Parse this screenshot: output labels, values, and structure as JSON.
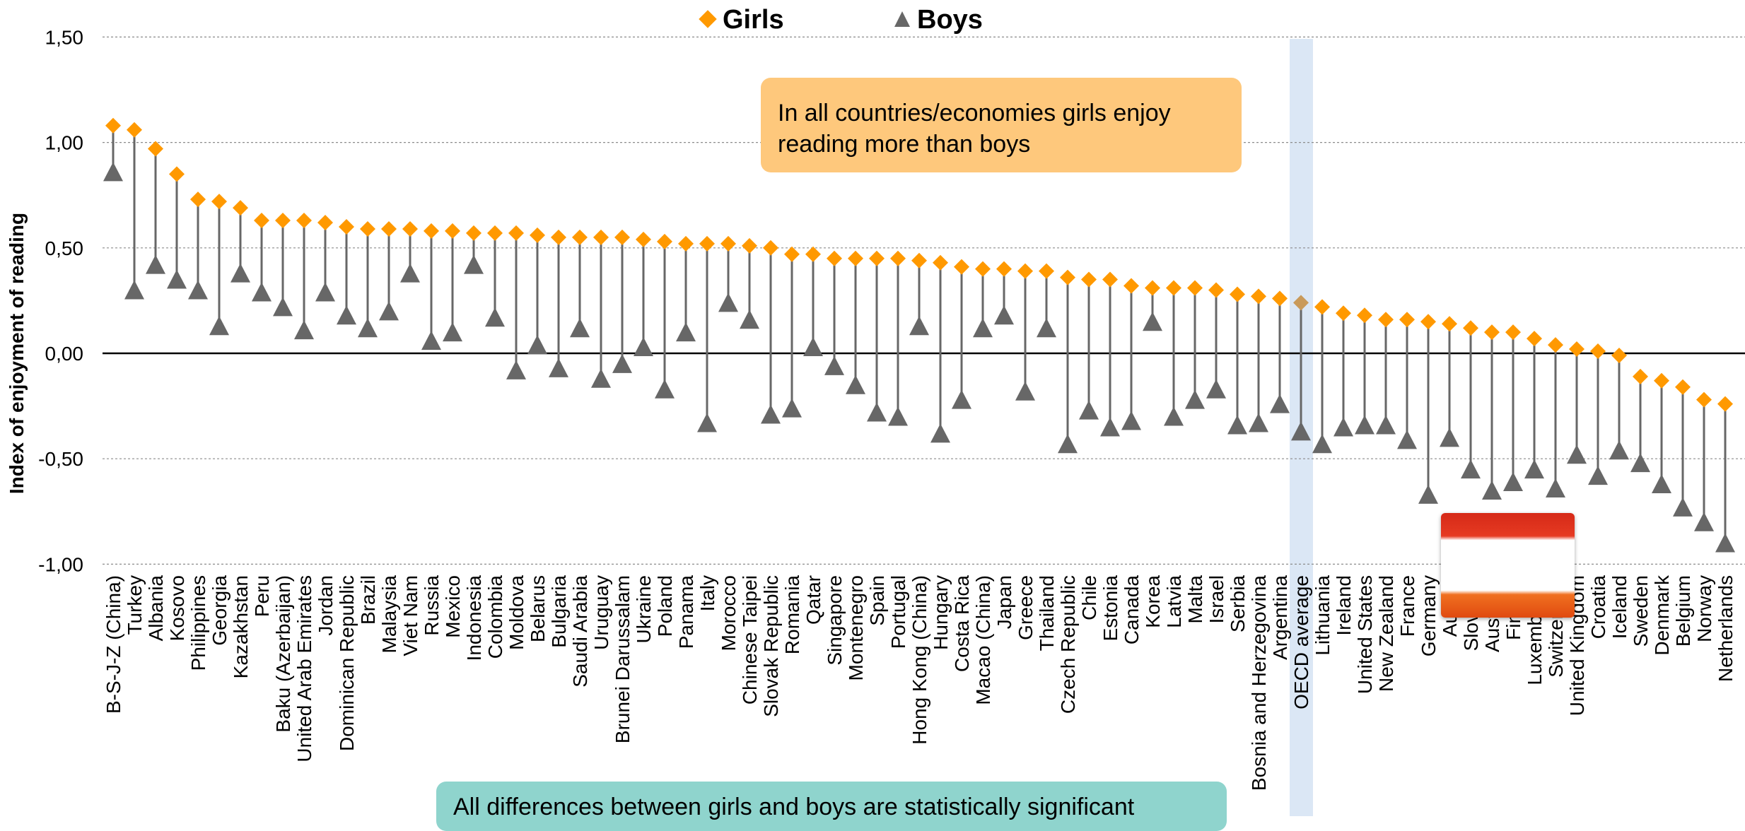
{
  "chart_data": {
    "type": "dot-plot",
    "ylabel": "Index of enjoyment of reading",
    "ylim": [
      -1.0,
      1.5
    ],
    "yticks": [
      "-1,00",
      "-0,50",
      "0,00",
      "0,50",
      "1,00",
      "1,50"
    ],
    "ytick_values": [
      -1.0,
      -0.5,
      0.0,
      0.5,
      1.0,
      1.5
    ],
    "grid": true,
    "legend_position": "top",
    "highlight_category": "OECD average",
    "categories": [
      "B-S-J-Z (China)",
      "Turkey",
      "Albania",
      "Kosovo",
      "Philippines",
      "Georgia",
      "Kazakhstan",
      "Peru",
      "Baku (Azerbaijan)",
      "United Arab Emirates",
      "Jordan",
      "Dominican Republic",
      "Brazil",
      "Malaysia",
      "Viet Nam",
      "Russia",
      "Mexico",
      "Indonesia",
      "Colombia",
      "Moldova",
      "Belarus",
      "Bulgaria",
      "Saudi Arabia",
      "Uruguay",
      "Brunei Darussalam",
      "Ukraine",
      "Poland",
      "Panama",
      "Italy",
      "Morocco",
      "Chinese Taipei",
      "Slovak Republic",
      "Romania",
      "Qatar",
      "Singapore",
      "Montenegro",
      "Spain",
      "Portugal",
      "Hong Kong (China)",
      "Hungary",
      "Costa Rica",
      "Macao (China)",
      "Japan",
      "Greece",
      "Thailand",
      "Czech Republic",
      "Chile",
      "Estonia",
      "Canada",
      "Korea",
      "Latvia",
      "Malta",
      "Israel",
      "Serbia",
      "Bosnia and Herzegovina",
      "Argentina",
      "OECD average",
      "Lithuania",
      "Ireland",
      "United States",
      "New Zealand",
      "France",
      "Germany",
      "Austria",
      "Slovenia",
      "Australia",
      "Finland",
      "Luxembourg",
      "Switzerland",
      "United Kingdom",
      "Croatia",
      "Iceland",
      "Sweden",
      "Denmark",
      "Belgium",
      "Norway",
      "Netherlands"
    ],
    "series": [
      {
        "name": "Girls",
        "marker": "diamond",
        "color": "#ff9900",
        "values": [
          1.08,
          1.06,
          0.97,
          0.85,
          0.73,
          0.72,
          0.69,
          0.63,
          0.63,
          0.63,
          0.62,
          0.6,
          0.59,
          0.59,
          0.59,
          0.58,
          0.58,
          0.57,
          0.57,
          0.57,
          0.56,
          0.55,
          0.55,
          0.55,
          0.55,
          0.54,
          0.53,
          0.52,
          0.52,
          0.52,
          0.51,
          0.5,
          0.47,
          0.47,
          0.45,
          0.45,
          0.45,
          0.45,
          0.44,
          0.43,
          0.41,
          0.4,
          0.4,
          0.39,
          0.39,
          0.36,
          0.35,
          0.35,
          0.32,
          0.31,
          0.31,
          0.31,
          0.3,
          0.28,
          0.27,
          0.26,
          0.24,
          0.22,
          0.19,
          0.18,
          0.16,
          0.16,
          0.15,
          0.14,
          0.12,
          0.1,
          0.1,
          0.07,
          0.04,
          0.02,
          0.01,
          -0.01,
          -0.11,
          -0.13,
          -0.16,
          -0.22,
          -0.24
        ]
      },
      {
        "name": "Boys",
        "marker": "triangle",
        "color": "#676767",
        "values": [
          0.86,
          0.3,
          0.42,
          0.35,
          0.3,
          0.13,
          0.38,
          0.29,
          0.22,
          0.11,
          0.29,
          0.18,
          0.12,
          0.2,
          0.38,
          0.06,
          0.1,
          0.42,
          0.17,
          -0.08,
          0.04,
          -0.07,
          0.12,
          -0.12,
          -0.05,
          0.03,
          -0.17,
          0.1,
          -0.33,
          0.24,
          0.16,
          -0.29,
          -0.26,
          0.03,
          -0.06,
          -0.15,
          -0.28,
          -0.3,
          0.13,
          -0.38,
          -0.22,
          0.12,
          0.18,
          -0.18,
          0.12,
          -0.43,
          -0.27,
          -0.35,
          -0.32,
          0.15,
          -0.3,
          -0.22,
          -0.17,
          -0.34,
          -0.33,
          -0.24,
          -0.37,
          -0.43,
          -0.35,
          -0.34,
          -0.34,
          -0.41,
          -0.67,
          -0.4,
          -0.55,
          -0.65,
          -0.61,
          -0.55,
          -0.64,
          -0.48,
          -0.58,
          -0.46,
          -0.52,
          -0.62,
          -0.73,
          -0.8,
          -0.9
        ]
      }
    ]
  },
  "legend": {
    "girls": "Girls",
    "boys": "Boys"
  },
  "annotations": {
    "top_line1": "In all countries/economies girls enjoy",
    "top_line2": "reading more than boys",
    "bottom": "All differences between girls and boys are statistically significant"
  }
}
